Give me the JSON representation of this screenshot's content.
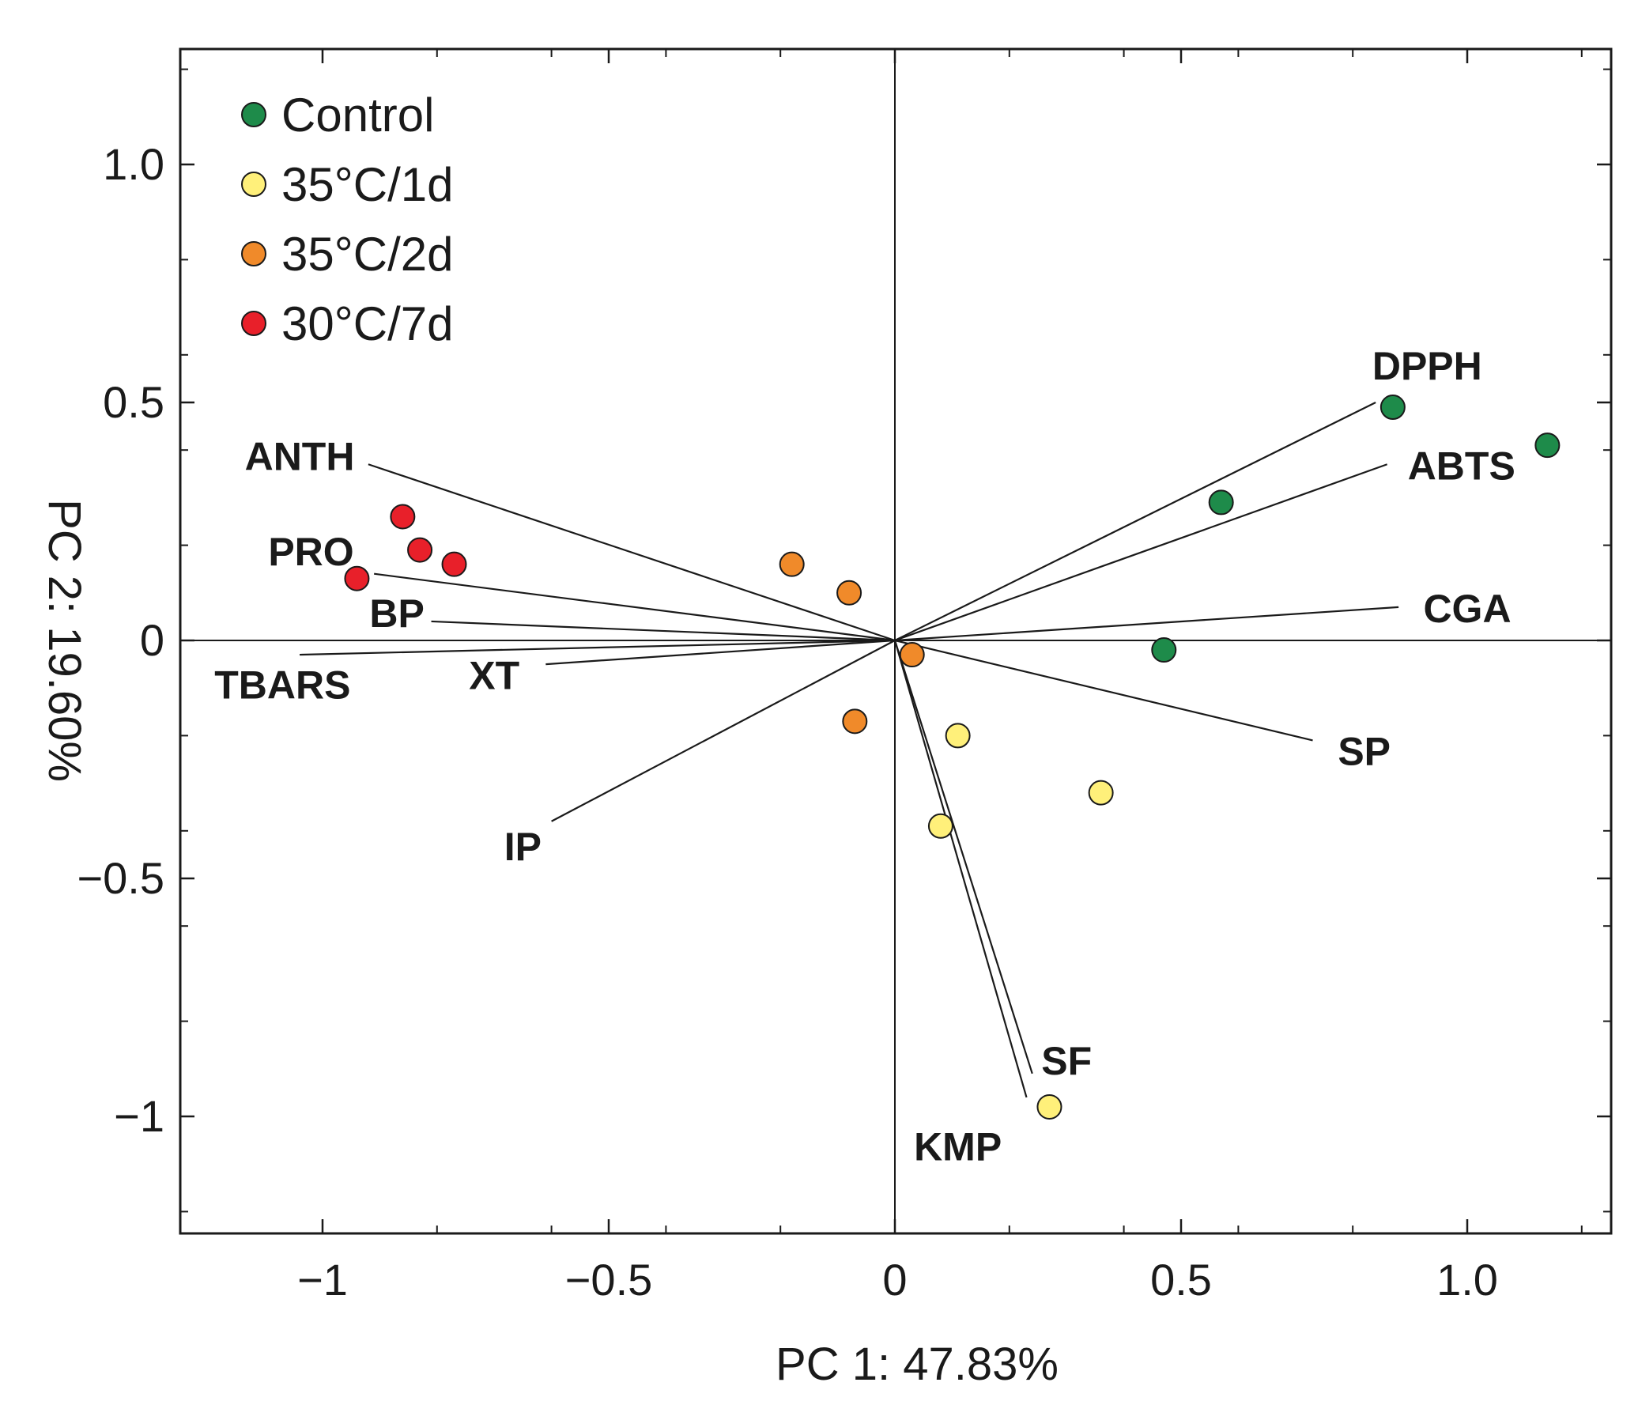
{
  "chart_data": {
    "type": "scatter",
    "subtype": "pca-biplot",
    "xlabel": "PC 1: 47.83%",
    "ylabel": "PC 2: 19.60%",
    "xlim": [
      -1.25,
      1.25
    ],
    "ylim": [
      -1.25,
      1.25
    ],
    "x_ticks": [
      {
        "value": -1,
        "label": "−1"
      },
      {
        "value": -0.5,
        "label": "−0.5"
      },
      {
        "value": 0,
        "label": "0"
      },
      {
        "value": 0.5,
        "label": "0.5"
      },
      {
        "value": 1.0,
        "label": "1.0"
      }
    ],
    "y_ticks": [
      {
        "value": 1.0,
        "label": "1.0"
      },
      {
        "value": 0.5,
        "label": "0.5"
      },
      {
        "value": 0,
        "label": "0"
      },
      {
        "value": -0.5,
        "label": "−0.5"
      },
      {
        "value": -1,
        "label": "−1"
      }
    ],
    "legend_position": "top-left",
    "series": [
      {
        "name": "Control",
        "color": "#1e8b4a",
        "points": [
          [
            0.87,
            0.49
          ],
          [
            1.14,
            0.41
          ],
          [
            0.57,
            0.29
          ],
          [
            0.47,
            -0.02
          ]
        ]
      },
      {
        "name": "35°C/1d",
        "color": "#fff07a",
        "points": [
          [
            0.11,
            -0.2
          ],
          [
            0.36,
            -0.32
          ],
          [
            0.08,
            -0.39
          ],
          [
            0.27,
            -0.98
          ]
        ]
      },
      {
        "name": "35°C/2d",
        "color": "#f08a2a",
        "points": [
          [
            -0.18,
            0.16
          ],
          [
            -0.08,
            0.1
          ],
          [
            0.03,
            -0.03
          ],
          [
            -0.07,
            -0.17
          ]
        ]
      },
      {
        "name": "30°C/7d",
        "color": "#e8202a",
        "points": [
          [
            -0.86,
            0.26
          ],
          [
            -0.83,
            0.19
          ],
          [
            -0.77,
            0.16
          ],
          [
            -0.94,
            0.13
          ]
        ]
      }
    ],
    "loadings": [
      {
        "name": "DPPH",
        "x": 0.84,
        "y": 0.5,
        "label_pos": [
          0.93,
          0.57
        ]
      },
      {
        "name": "ABTS",
        "x": 0.86,
        "y": 0.37,
        "label_pos": [
          0.99,
          0.36
        ]
      },
      {
        "name": "CGA",
        "x": 0.88,
        "y": 0.07,
        "label_pos": [
          1.0,
          0.06
        ]
      },
      {
        "name": "SP",
        "x": 0.73,
        "y": -0.21,
        "label_pos": [
          0.82,
          -0.24
        ]
      },
      {
        "name": "SF",
        "x": 0.24,
        "y": -0.91,
        "label_pos": [
          0.3,
          -0.89
        ]
      },
      {
        "name": "KMP",
        "x": 0.23,
        "y": -0.96,
        "label_pos": [
          0.11,
          -1.07
        ]
      },
      {
        "name": "ANTH",
        "x": -0.92,
        "y": 0.37,
        "label_pos": [
          -1.04,
          0.38
        ]
      },
      {
        "name": "PRO",
        "x": -0.91,
        "y": 0.14,
        "label_pos": [
          -1.02,
          0.18
        ]
      },
      {
        "name": "BP",
        "x": -0.81,
        "y": 0.04,
        "label_pos": [
          -0.87,
          0.05
        ]
      },
      {
        "name": "TBARS",
        "x": -1.04,
        "y": -0.03,
        "label_pos": [
          -1.07,
          -0.1
        ]
      },
      {
        "name": "XT",
        "x": -0.61,
        "y": -0.05,
        "label_pos": [
          -0.7,
          -0.08
        ]
      },
      {
        "name": "IP",
        "x": -0.6,
        "y": -0.38,
        "label_pos": [
          -0.65,
          -0.44
        ]
      }
    ]
  }
}
